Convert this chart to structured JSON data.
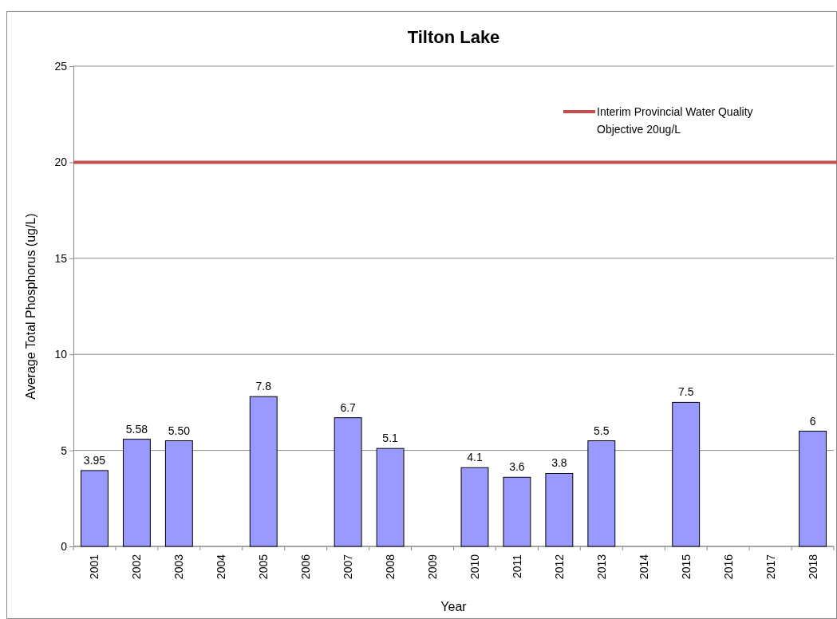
{
  "chart_data": {
    "type": "bar",
    "title": "Tilton Lake",
    "xlabel": "Year",
    "ylabel": "Average Total Phosphorus (ug/L)",
    "categories": [
      "2001",
      "2002",
      "2003",
      "2004",
      "2005",
      "2006",
      "2007",
      "2008",
      "2009",
      "2010",
      "2011",
      "2012",
      "2013",
      "2014",
      "2015",
      "2016",
      "2017",
      "2018"
    ],
    "values": [
      3.95,
      5.58,
      5.5,
      null,
      7.8,
      null,
      6.7,
      5.1,
      null,
      4.1,
      3.6,
      3.8,
      5.5,
      null,
      7.5,
      null,
      null,
      6
    ],
    "value_labels": [
      "3.95",
      "5.58",
      "5.50",
      null,
      "7.8",
      null,
      "6.7",
      "5.1",
      null,
      "4.1",
      "3.6",
      "3.8",
      "5.5",
      null,
      "7.5",
      null,
      null,
      "6"
    ],
    "color": "#9999ff",
    "ylim": [
      0,
      25
    ],
    "yticks": [
      0,
      5,
      10,
      15,
      20,
      25
    ],
    "grid": "y",
    "ref_lines": [
      {
        "axis": "y",
        "value": 20,
        "label": "Interim Provincial Water Quality Objective 20ug/L",
        "color": "#c0504d"
      }
    ],
    "legend": "top right"
  }
}
